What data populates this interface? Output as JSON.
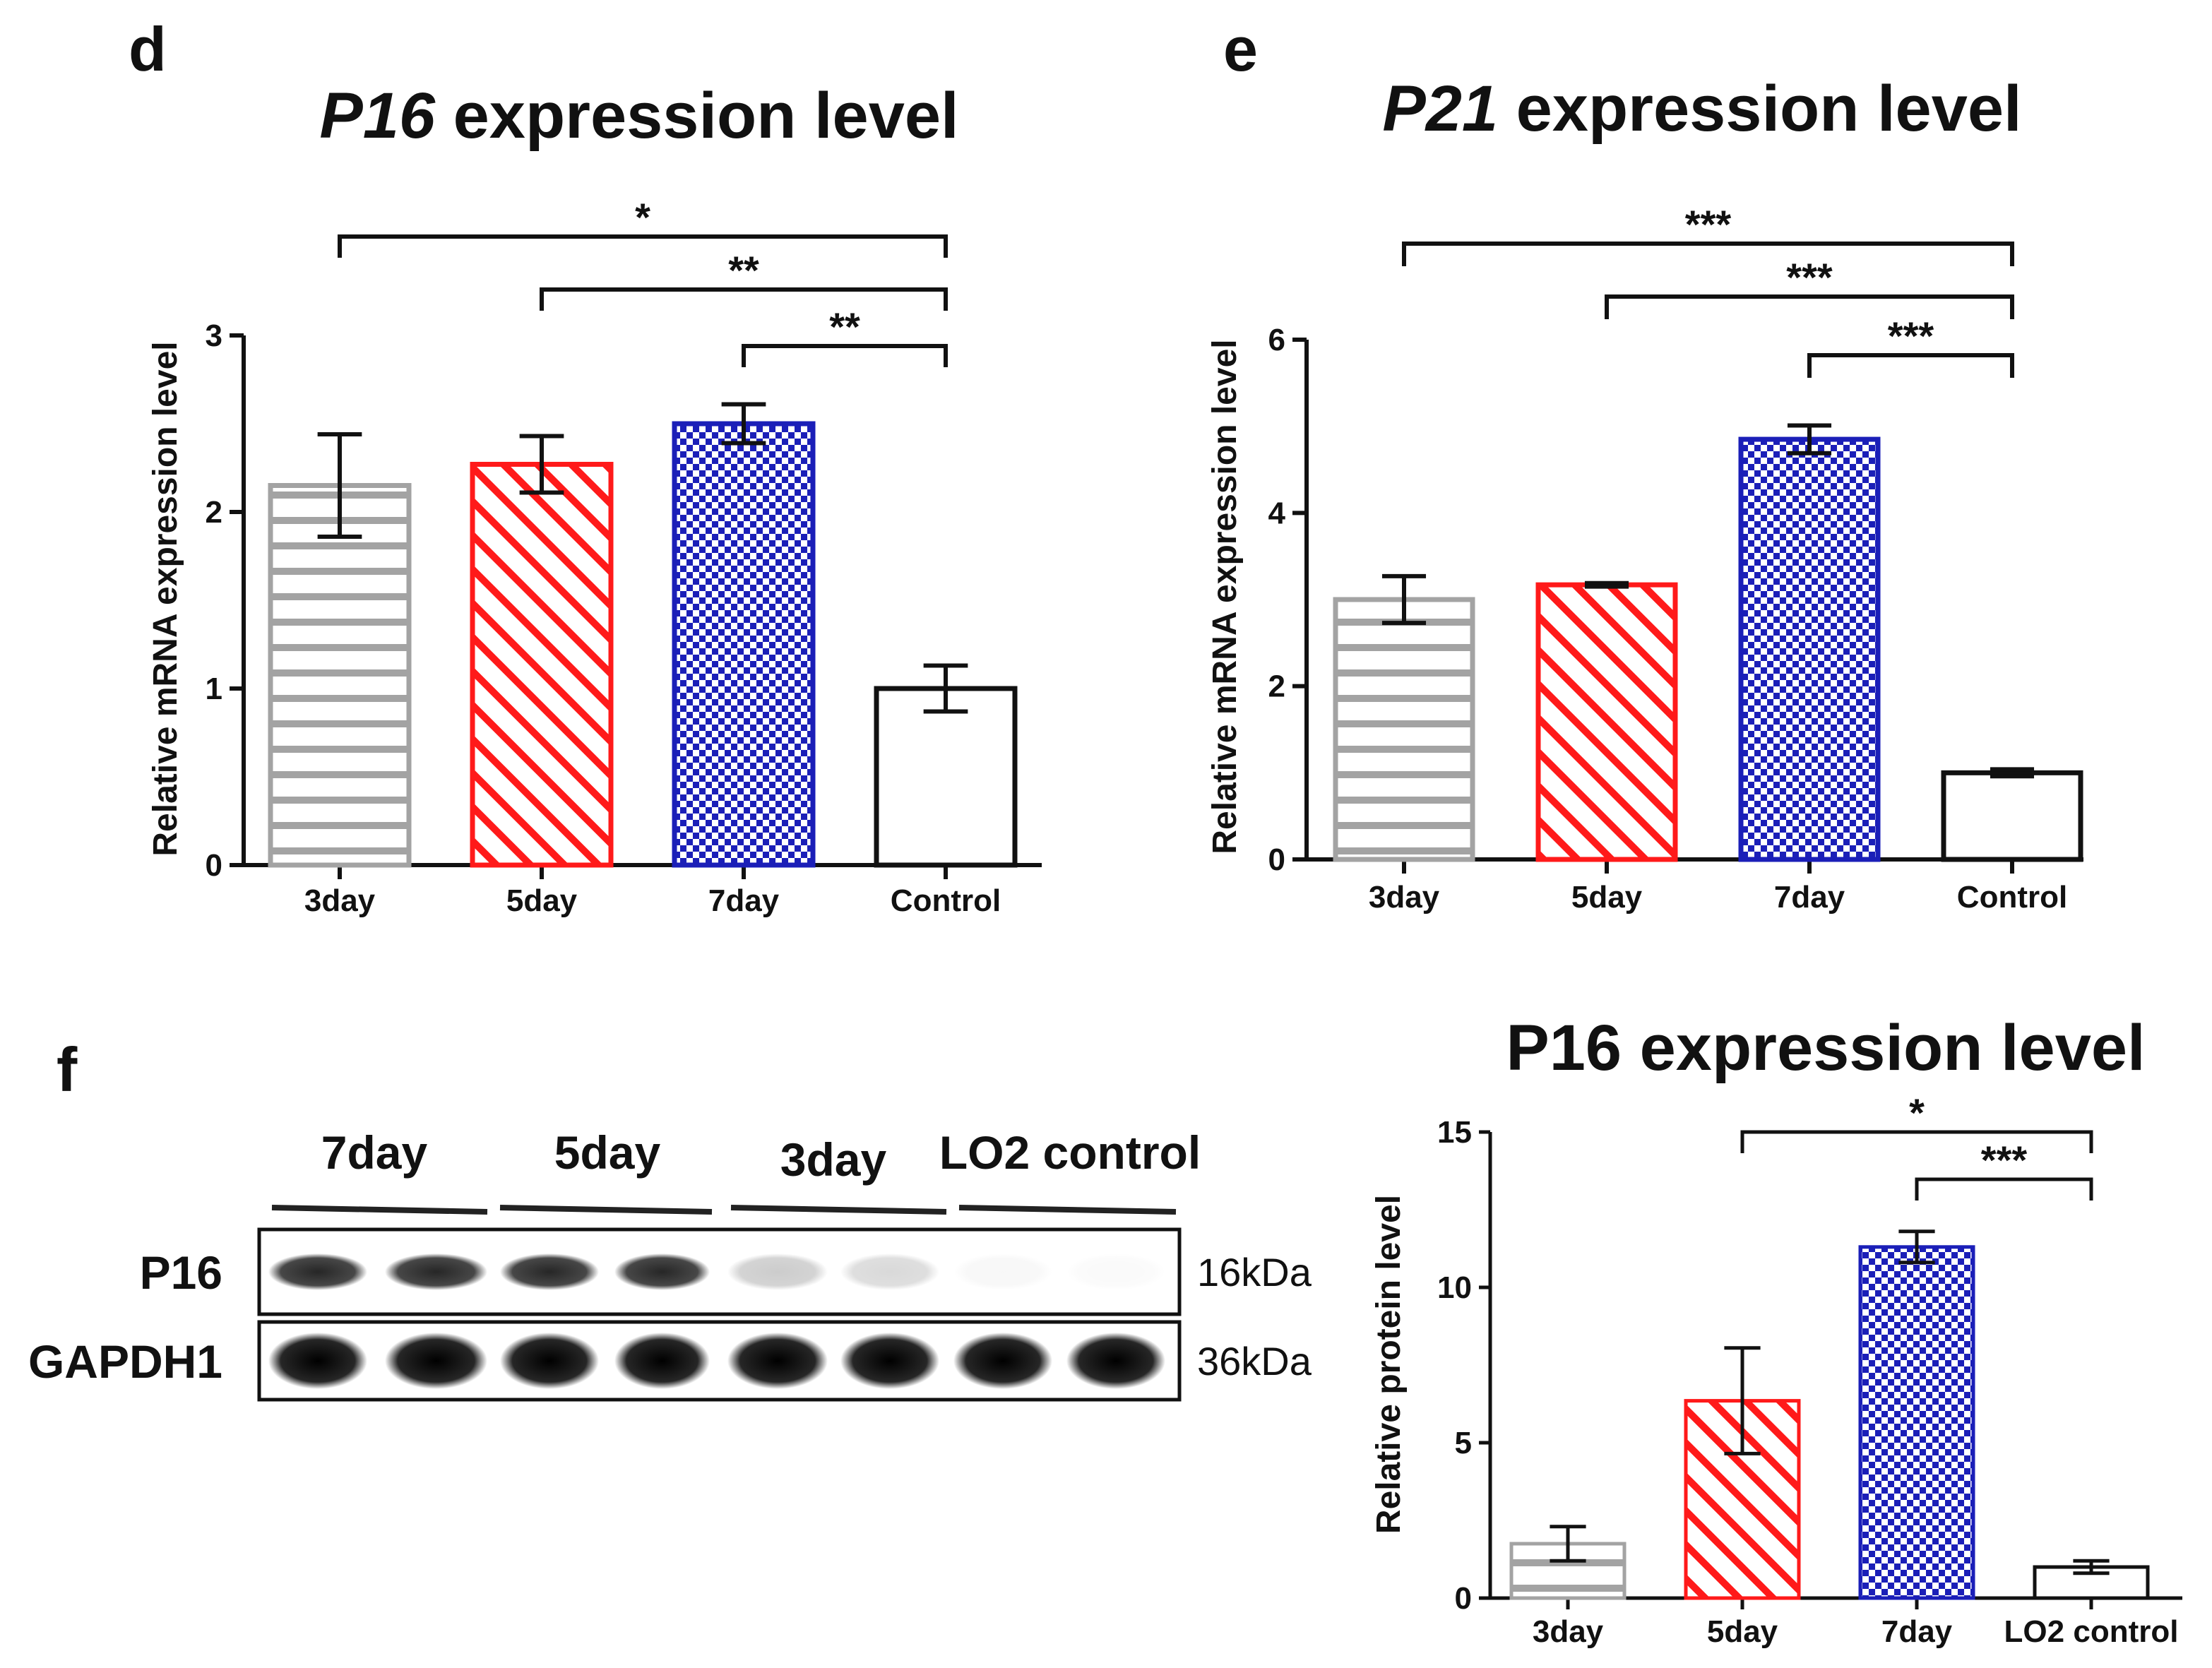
{
  "panel_labels": {
    "d": "d",
    "e": "e",
    "f": "f"
  },
  "colors": {
    "gray": "#a3a3a3",
    "red": "#ff1a1a",
    "blue": "#1b1fb8",
    "black": "#111111"
  },
  "chart_data": [
    {
      "id": "d",
      "type": "bar",
      "title_italic": "P16",
      "title_rest": " expression level",
      "ylabel": "Relative mRNA expression level",
      "categories": [
        "3day",
        "5day",
        "7day",
        "Control"
      ],
      "values": [
        2.15,
        2.27,
        2.5,
        1.0
      ],
      "errors": [
        0.29,
        0.16,
        0.11,
        0.13
      ],
      "patterns": [
        "hstripe",
        "diag",
        "check",
        "none"
      ],
      "colors": [
        "#a3a3a3",
        "#ff1a1a",
        "#1b1fb8",
        "#111111"
      ],
      "ylim": [
        0,
        3
      ],
      "yticks": [
        0,
        1,
        2,
        3
      ],
      "significance": [
        {
          "from": 0,
          "to": 3,
          "label": "*"
        },
        {
          "from": 1,
          "to": 3,
          "label": "**"
        },
        {
          "from": 2,
          "to": 3,
          "label": "**"
        }
      ]
    },
    {
      "id": "e",
      "type": "bar",
      "title_italic": "P21",
      "title_rest": " expression level",
      "ylabel": "Relative mRNA expression level",
      "categories": [
        "3day",
        "5day",
        "7day",
        "Control"
      ],
      "values": [
        3.0,
        3.17,
        4.85,
        1.0
      ],
      "errors": [
        0.27,
        0.02,
        0.16,
        0.04
      ],
      "patterns": [
        "hstripe",
        "diag",
        "check",
        "none"
      ],
      "colors": [
        "#a3a3a3",
        "#ff1a1a",
        "#1b1fb8",
        "#111111"
      ],
      "ylim": [
        0,
        6
      ],
      "yticks": [
        0,
        2,
        4,
        6
      ],
      "significance": [
        {
          "from": 0,
          "to": 3,
          "label": "***"
        },
        {
          "from": 1,
          "to": 3,
          "label": "***"
        },
        {
          "from": 2,
          "to": 3,
          "label": "***"
        }
      ]
    },
    {
      "id": "f",
      "type": "bar",
      "title_italic": "",
      "title_rest": "P16 expression level",
      "ylabel": "Relative protein level",
      "categories": [
        "3day",
        "5day",
        "7day",
        "LO2 control"
      ],
      "values": [
        1.75,
        6.35,
        11.3,
        1.0
      ],
      "errors": [
        0.55,
        1.7,
        0.5,
        0.2
      ],
      "patterns": [
        "hstripe",
        "diag",
        "check",
        "none"
      ],
      "colors": [
        "#a3a3a3",
        "#ff1a1a",
        "#1b1fb8",
        "#111111"
      ],
      "ylim": [
        0,
        15
      ],
      "yticks": [
        0,
        5,
        10,
        15
      ],
      "significance": [
        {
          "from": 1,
          "to": 3,
          "label": "*"
        },
        {
          "from": 2,
          "to": 3,
          "label": "***"
        }
      ]
    }
  ],
  "western_blot": {
    "groups": [
      "7day",
      "5day",
      "3day",
      "LO2 control"
    ],
    "rows": [
      {
        "protein": "P16",
        "size": "16kDa",
        "intensities": [
          0.85,
          0.85,
          0.85,
          0.85,
          0.2,
          0.15,
          0.03,
          0.02
        ]
      },
      {
        "protein": "GAPDH1",
        "size": "36kDa",
        "intensities": [
          1,
          1,
          1,
          1,
          1,
          1,
          1,
          1
        ]
      }
    ]
  }
}
